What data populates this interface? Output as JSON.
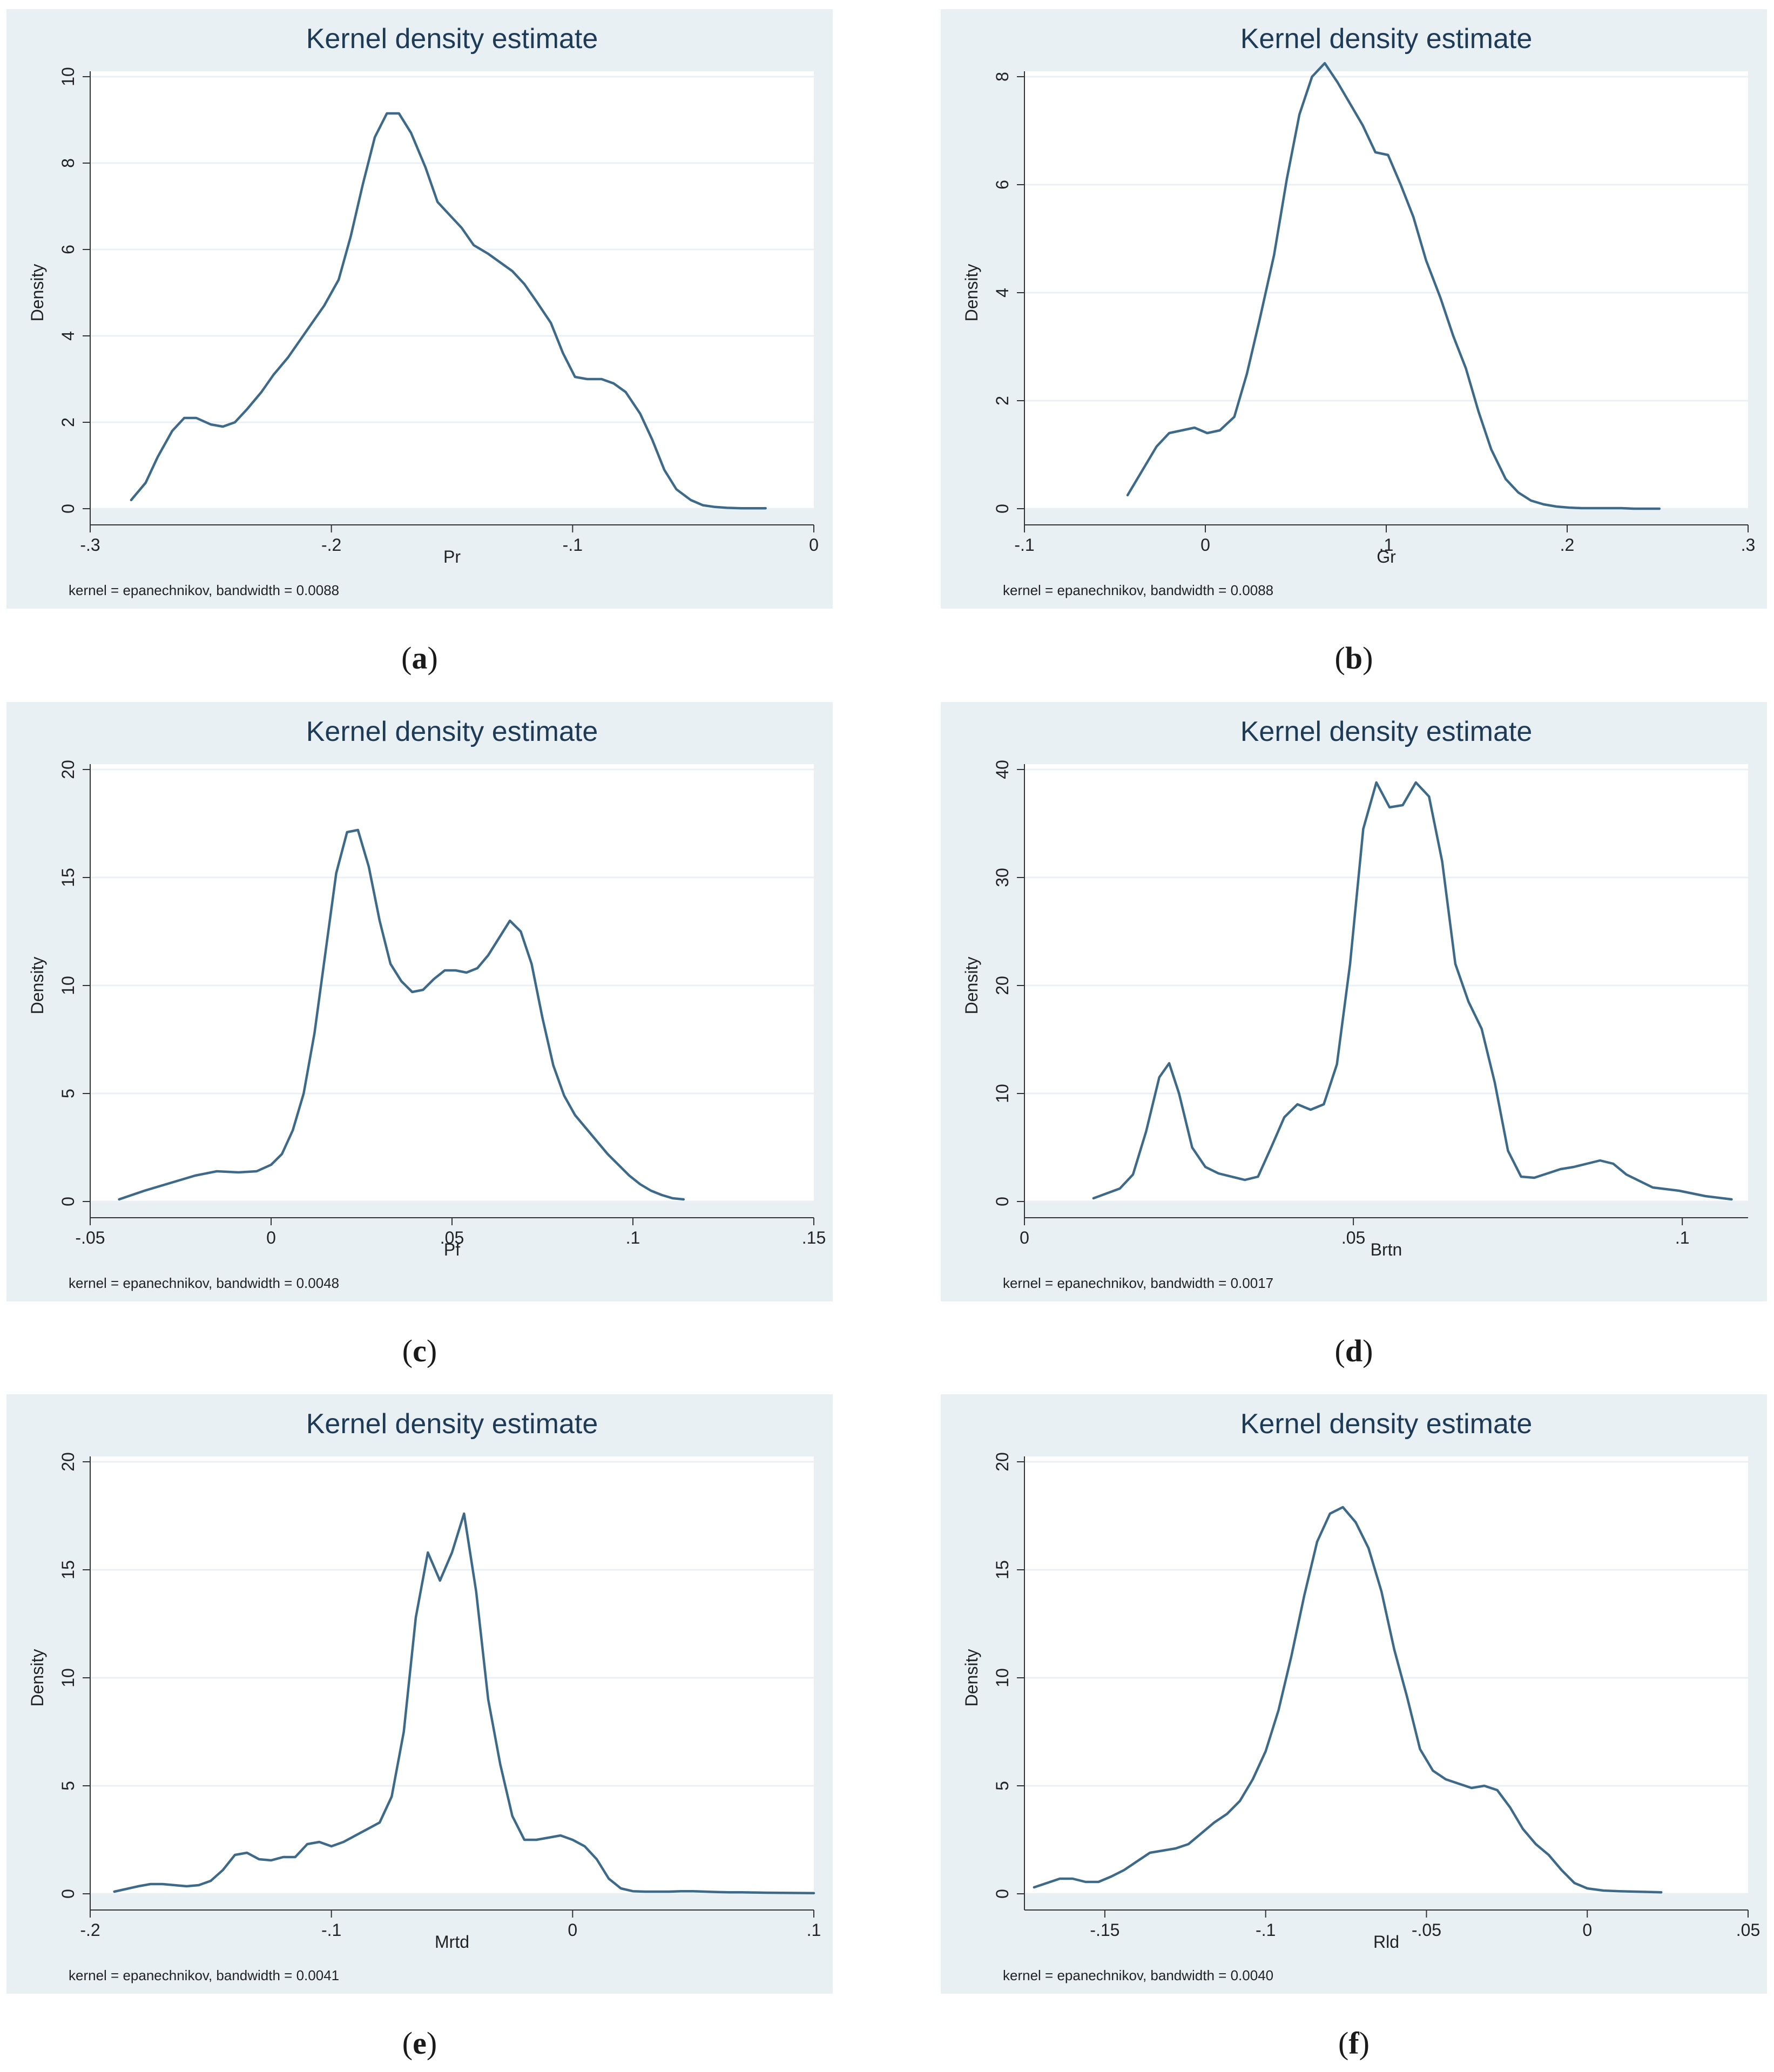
{
  "chart_data": [
    {
      "type": "line",
      "title": "Kernel density estimate",
      "xlabel": "Pr",
      "ylabel": "Density",
      "note": "kernel = epanechnikov, bandwidth = 0.0088",
      "caption_letter": "a",
      "xlim": [
        -0.3,
        0.0
      ],
      "ylim": [
        0,
        10
      ],
      "xticks": [
        -0.3,
        -0.2,
        -0.1,
        0
      ],
      "xtick_labels": [
        "-.3",
        "-.2",
        "-.1",
        "0"
      ],
      "yticks": [
        0,
        2,
        4,
        6,
        8,
        10
      ],
      "ytick_labels": [
        "0",
        "2",
        "4",
        "6",
        "8",
        "10"
      ],
      "x": [
        -0.283,
        -0.277,
        -0.272,
        -0.266,
        -0.261,
        -0.256,
        -0.25,
        -0.245,
        -0.24,
        -0.235,
        -0.229,
        -0.224,
        -0.218,
        -0.213,
        -0.208,
        -0.203,
        -0.197,
        -0.192,
        -0.187,
        -0.182,
        -0.177,
        -0.172,
        -0.167,
        -0.161,
        -0.156,
        -0.151,
        -0.146,
        -0.141,
        -0.135,
        -0.13,
        -0.125,
        -0.12,
        -0.115,
        -0.109,
        -0.104,
        -0.099,
        -0.094,
        -0.088,
        -0.083,
        -0.078,
        -0.072,
        -0.067,
        -0.062,
        -0.057,
        -0.051,
        -0.046,
        -0.041,
        -0.036,
        -0.03,
        -0.025,
        -0.02
      ],
      "y": [
        0.2,
        0.6,
        1.2,
        1.8,
        2.1,
        2.1,
        1.95,
        1.9,
        2.0,
        2.3,
        2.7,
        3.1,
        3.5,
        3.9,
        4.3,
        4.7,
        5.3,
        6.3,
        7.5,
        8.6,
        9.15,
        9.15,
        8.7,
        7.9,
        7.1,
        6.8,
        6.5,
        6.1,
        5.9,
        5.7,
        5.5,
        5.2,
        4.8,
        4.3,
        3.6,
        3.05,
        3.0,
        3.0,
        2.9,
        2.7,
        2.2,
        1.6,
        0.9,
        0.45,
        0.2,
        0.08,
        0.04,
        0.02,
        0.01,
        0.01,
        0.01
      ]
    },
    {
      "type": "line",
      "title": "Kernel density estimate",
      "xlabel": "Gr",
      "ylabel": "Density",
      "note": "kernel = epanechnikov, bandwidth = 0.0088",
      "caption_letter": "b",
      "xlim": [
        -0.1,
        0.3
      ],
      "ylim": [
        0,
        8
      ],
      "xticks": [
        -0.1,
        0,
        0.1,
        0.2,
        0.3
      ],
      "xtick_labels": [
        "-.1",
        "0",
        ".1",
        ".2",
        ".3"
      ],
      "yticks": [
        0,
        2,
        4,
        6,
        8
      ],
      "ytick_labels": [
        "0",
        "2",
        "4",
        "6",
        "8"
      ],
      "x": [
        -0.043,
        -0.035,
        -0.027,
        -0.02,
        -0.013,
        -0.006,
        0.001,
        0.008,
        0.016,
        0.023,
        0.03,
        0.038,
        0.045,
        0.052,
        0.059,
        0.066,
        0.073,
        0.08,
        0.087,
        0.094,
        0.101,
        0.108,
        0.115,
        0.122,
        0.13,
        0.137,
        0.144,
        0.151,
        0.158,
        0.166,
        0.173,
        0.18,
        0.187,
        0.194,
        0.201,
        0.208,
        0.215,
        0.223,
        0.23,
        0.237,
        0.244,
        0.251
      ],
      "y": [
        0.25,
        0.7,
        1.15,
        1.4,
        1.45,
        1.5,
        1.4,
        1.45,
        1.7,
        2.5,
        3.5,
        4.7,
        6.1,
        7.3,
        8.0,
        8.25,
        7.9,
        7.5,
        7.1,
        6.6,
        6.55,
        6.0,
        5.4,
        4.6,
        3.9,
        3.2,
        2.6,
        1.8,
        1.1,
        0.55,
        0.3,
        0.15,
        0.08,
        0.04,
        0.02,
        0.01,
        0.01,
        0.01,
        0.01,
        0.0,
        0.0,
        0.0
      ]
    },
    {
      "type": "line",
      "title": "Kernel density estimate",
      "xlabel": "Pf",
      "ylabel": "Density",
      "note": "kernel = epanechnikov, bandwidth = 0.0048",
      "caption_letter": "c",
      "xlim": [
        -0.05,
        0.15
      ],
      "ylim": [
        0,
        20
      ],
      "xticks": [
        -0.05,
        0,
        0.05,
        0.1,
        0.15
      ],
      "xtick_labels": [
        "-.05",
        "0",
        ".05",
        ".1",
        ".15"
      ],
      "yticks": [
        0,
        5,
        10,
        15,
        20
      ],
      "ytick_labels": [
        "0",
        "5",
        "10",
        "15",
        "20"
      ],
      "x": [
        -0.042,
        -0.035,
        -0.028,
        -0.021,
        -0.015,
        -0.009,
        -0.004,
        0.0,
        0.003,
        0.006,
        0.009,
        0.012,
        0.015,
        0.018,
        0.021,
        0.024,
        0.027,
        0.03,
        0.033,
        0.036,
        0.039,
        0.042,
        0.045,
        0.048,
        0.051,
        0.054,
        0.057,
        0.06,
        0.063,
        0.066,
        0.069,
        0.072,
        0.075,
        0.078,
        0.081,
        0.084,
        0.087,
        0.09,
        0.093,
        0.096,
        0.099,
        0.102,
        0.105,
        0.108,
        0.111,
        0.114
      ],
      "y": [
        0.1,
        0.5,
        0.85,
        1.2,
        1.4,
        1.35,
        1.4,
        1.7,
        2.2,
        3.3,
        5.0,
        7.8,
        11.5,
        15.2,
        17.1,
        17.2,
        15.5,
        13.0,
        11.0,
        10.2,
        9.7,
        9.8,
        10.3,
        10.7,
        10.7,
        10.6,
        10.8,
        11.4,
        12.2,
        13.0,
        12.5,
        11.0,
        8.5,
        6.3,
        4.9,
        4.0,
        3.4,
        2.8,
        2.2,
        1.7,
        1.2,
        0.8,
        0.5,
        0.3,
        0.15,
        0.1
      ]
    },
    {
      "type": "line",
      "title": "Kernel density estimate",
      "xlabel": "Brtn",
      "ylabel": "Density",
      "note": "kernel = epanechnikov, bandwidth = 0.0017",
      "caption_letter": "d",
      "xlim": [
        0,
        0.11
      ],
      "ylim": [
        0,
        40
      ],
      "xticks": [
        0,
        0.05,
        0.1
      ],
      "xtick_labels": [
        "0",
        ".05",
        ".1"
      ],
      "yticks": [
        0,
        10,
        20,
        30,
        40
      ],
      "ytick_labels": [
        "0",
        "10",
        "20",
        "30",
        "40"
      ],
      "x": [
        0.0105,
        0.0145,
        0.0165,
        0.0185,
        0.0205,
        0.022,
        0.0235,
        0.0255,
        0.0275,
        0.0295,
        0.0335,
        0.0355,
        0.0375,
        0.0395,
        0.0415,
        0.0435,
        0.0455,
        0.0475,
        0.0495,
        0.0515,
        0.0535,
        0.0555,
        0.0575,
        0.0595,
        0.0615,
        0.0635,
        0.0655,
        0.0675,
        0.0695,
        0.0715,
        0.0735,
        0.0755,
        0.0775,
        0.0795,
        0.0815,
        0.0835,
        0.0855,
        0.0875,
        0.0895,
        0.0915,
        0.0955,
        0.0995,
        0.1035,
        0.1075
      ],
      "y": [
        0.3,
        1.2,
        2.5,
        6.5,
        11.5,
        12.8,
        10.0,
        5.0,
        3.2,
        2.6,
        2.0,
        2.3,
        5.0,
        7.8,
        9.0,
        8.5,
        9.0,
        12.7,
        22.0,
        34.5,
        38.8,
        36.5,
        36.7,
        38.8,
        37.5,
        31.5,
        22.0,
        18.5,
        16.0,
        11.0,
        4.7,
        2.3,
        2.2,
        2.6,
        3.0,
        3.2,
        3.5,
        3.8,
        3.5,
        2.5,
        1.3,
        1.0,
        0.5,
        0.2
      ]
    },
    {
      "type": "line",
      "title": "Kernel density estimate",
      "xlabel": "Mrtd",
      "ylabel": "Density",
      "note": "kernel = epanechnikov, bandwidth = 0.0041",
      "caption_letter": "e",
      "xlim": [
        -0.2,
        0.1
      ],
      "ylim": [
        0,
        20
      ],
      "xticks": [
        -0.2,
        -0.1,
        0,
        0.1
      ],
      "xtick_labels": [
        "-.2",
        "-.1",
        "0",
        ".1"
      ],
      "yticks": [
        0,
        5,
        10,
        15,
        20
      ],
      "ytick_labels": [
        "0",
        "5",
        "10",
        "15",
        "20"
      ],
      "x": [
        -0.19,
        -0.18,
        -0.175,
        -0.17,
        -0.165,
        -0.16,
        -0.155,
        -0.15,
        -0.145,
        -0.14,
        -0.135,
        -0.13,
        -0.125,
        -0.12,
        -0.115,
        -0.11,
        -0.105,
        -0.1,
        -0.095,
        -0.09,
        -0.085,
        -0.08,
        -0.075,
        -0.07,
        -0.065,
        -0.06,
        -0.055,
        -0.05,
        -0.045,
        -0.04,
        -0.035,
        -0.03,
        -0.025,
        -0.02,
        -0.015,
        -0.01,
        -0.005,
        0.0,
        0.005,
        0.01,
        0.015,
        0.02,
        0.025,
        0.03,
        0.035,
        0.04,
        0.045,
        0.05,
        0.055,
        0.06,
        0.065,
        0.07,
        0.075,
        0.08,
        0.09,
        0.1
      ],
      "y": [
        0.1,
        0.35,
        0.45,
        0.45,
        0.4,
        0.35,
        0.4,
        0.6,
        1.1,
        1.8,
        1.9,
        1.6,
        1.55,
        1.7,
        1.7,
        2.3,
        2.4,
        2.2,
        2.4,
        2.7,
        3.0,
        3.3,
        4.5,
        7.5,
        12.8,
        15.8,
        14.5,
        15.8,
        17.6,
        14.0,
        9.0,
        6.0,
        3.6,
        2.5,
        2.5,
        2.6,
        2.7,
        2.5,
        2.2,
        1.6,
        0.7,
        0.25,
        0.12,
        0.1,
        0.1,
        0.1,
        0.12,
        0.12,
        0.1,
        0.08,
        0.07,
        0.07,
        0.06,
        0.05,
        0.04,
        0.03
      ]
    },
    {
      "type": "line",
      "title": "Kernel density estimate",
      "xlabel": "Rld",
      "ylabel": "Density",
      "note": "kernel = epanechnikov, bandwidth = 0.0040",
      "caption_letter": "f",
      "xlim": [
        -0.175,
        0.05
      ],
      "ylim": [
        0,
        20
      ],
      "xticks": [
        -0.15,
        -0.1,
        -0.05,
        0,
        0.05
      ],
      "xtick_labels": [
        "-.15",
        "-.1",
        "-.05",
        "0",
        ".05"
      ],
      "yticks": [
        0,
        5,
        10,
        15,
        20
      ],
      "ytick_labels": [
        "0",
        "5",
        "10",
        "15",
        "20"
      ],
      "x": [
        -0.172,
        -0.168,
        -0.164,
        -0.16,
        -0.156,
        -0.152,
        -0.148,
        -0.144,
        -0.14,
        -0.136,
        -0.132,
        -0.128,
        -0.124,
        -0.12,
        -0.116,
        -0.112,
        -0.108,
        -0.104,
        -0.1,
        -0.096,
        -0.092,
        -0.088,
        -0.084,
        -0.08,
        -0.076,
        -0.072,
        -0.068,
        -0.064,
        -0.06,
        -0.056,
        -0.052,
        -0.048,
        -0.044,
        -0.04,
        -0.036,
        -0.032,
        -0.028,
        -0.024,
        -0.02,
        -0.016,
        -0.012,
        -0.008,
        -0.004,
        0.0,
        0.005,
        0.01,
        0.015,
        0.02,
        0.023
      ],
      "y": [
        0.3,
        0.5,
        0.7,
        0.7,
        0.55,
        0.55,
        0.8,
        1.1,
        1.5,
        1.9,
        2.0,
        2.1,
        2.3,
        2.8,
        3.3,
        3.7,
        4.3,
        5.3,
        6.6,
        8.5,
        11.0,
        13.8,
        16.3,
        17.6,
        17.9,
        17.2,
        16.0,
        14.0,
        11.3,
        9.1,
        6.7,
        5.7,
        5.3,
        5.1,
        4.9,
        5.0,
        4.8,
        4.0,
        3.0,
        2.3,
        1.8,
        1.1,
        0.5,
        0.25,
        0.15,
        0.12,
        0.1,
        0.08,
        0.07
      ]
    }
  ]
}
